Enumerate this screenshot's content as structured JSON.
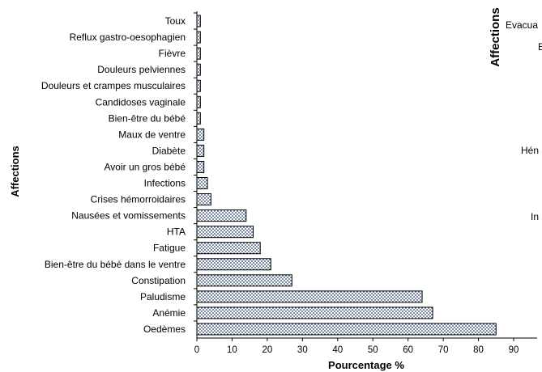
{
  "chart_data": {
    "type": "bar",
    "orientation": "horizontal",
    "categories": [
      "Toux",
      "Reflux gastro-oesophagien",
      "Fièvre",
      "Douleurs pelviennes",
      "Douleurs et crampes musculaires",
      "Candidoses vaginale",
      "Bien-être du bébé",
      "Maux de ventre",
      "Diabète",
      "Avoir un gros bébé",
      "Infections",
      "Crises hémorroidaires",
      "Nausées et vomissements",
      "HTA",
      "Fatigue",
      "Bien-être du bébé dans le ventre",
      "Constipation",
      "Paludisme",
      "Anémie",
      "Oedèmes"
    ],
    "values": [
      1,
      1,
      1,
      1,
      1,
      1,
      1,
      2,
      2,
      2,
      3,
      4,
      14,
      16,
      18,
      21,
      27,
      64,
      67,
      85
    ],
    "xlabel": "Pourcentage %",
    "ylabel": "Affections",
    "xlim": [
      0,
      90
    ],
    "xticks": [
      "0",
      "10",
      "20",
      "30",
      "40",
      "50",
      "60",
      "70",
      "80",
      "90"
    ],
    "bar_pattern": "dotted",
    "grid": false,
    "legend": "none"
  },
  "right_panel": {
    "ylabel": "Affections",
    "labels": [
      "Evacua",
      "E",
      "Hén",
      "In"
    ]
  }
}
